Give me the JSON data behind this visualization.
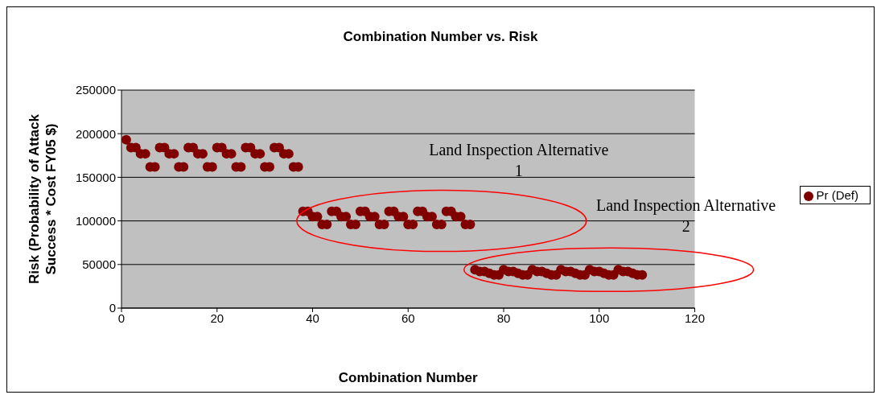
{
  "chart_data": {
    "type": "scatter",
    "title": "Combination Number vs. Risk",
    "xlabel": "Combination Number",
    "ylabel": "Risk (Probability of Attack Success * Cost FY05 $)",
    "x": [
      1,
      2,
      3,
      4,
      5,
      6,
      7,
      8,
      9,
      10,
      11,
      12,
      13,
      14,
      15,
      16,
      17,
      18,
      19,
      20,
      21,
      22,
      23,
      24,
      25,
      26,
      27,
      28,
      29,
      30,
      31,
      32,
      33,
      34,
      35,
      36,
      37,
      38,
      39,
      40,
      41,
      42,
      43,
      44,
      45,
      46,
      47,
      48,
      49,
      50,
      51,
      52,
      53,
      54,
      55,
      56,
      57,
      58,
      59,
      60,
      61,
      62,
      63,
      64,
      65,
      66,
      67,
      68,
      69,
      70,
      71,
      72,
      73,
      74,
      75,
      76,
      77,
      78,
      79,
      80,
      81,
      82,
      83,
      84,
      85,
      86,
      87,
      88,
      89,
      90,
      91,
      92,
      93,
      94,
      95,
      96,
      97,
      98,
      99,
      100,
      101,
      102,
      103,
      104,
      105,
      106,
      107,
      108,
      109
    ],
    "series": [
      {
        "name": "Pr (Def)",
        "color": "#800000",
        "values": [
          193000,
          184000,
          184000,
          177000,
          177000,
          162000,
          162000,
          184000,
          184000,
          177000,
          177000,
          162000,
          162000,
          184000,
          184000,
          177000,
          177000,
          162000,
          162000,
          184000,
          184000,
          177000,
          177000,
          162000,
          162000,
          184000,
          184000,
          177000,
          177000,
          162000,
          162000,
          184000,
          184000,
          177000,
          177000,
          162000,
          162000,
          111000,
          111000,
          105000,
          105000,
          96000,
          96000,
          111000,
          111000,
          105000,
          105000,
          96000,
          96000,
          111000,
          111000,
          105000,
          105000,
          96000,
          96000,
          111000,
          111000,
          105000,
          105000,
          96000,
          96000,
          111000,
          111000,
          105000,
          105000,
          96000,
          96000,
          111000,
          111000,
          105000,
          105000,
          96000,
          96000,
          44000,
          42000,
          42000,
          40000,
          38000,
          38000,
          44000,
          42000,
          42000,
          40000,
          38000,
          38000,
          44000,
          42000,
          42000,
          40000,
          38000,
          38000,
          44000,
          42000,
          42000,
          40000,
          38000,
          38000,
          44000,
          42000,
          42000,
          40000,
          38000,
          38000,
          44000,
          42000,
          42000,
          40000,
          38000,
          38000
        ]
      }
    ],
    "xlim": [
      0,
      120
    ],
    "xticks": [
      0,
      20,
      40,
      60,
      80,
      100,
      120
    ],
    "ylim": [
      0,
      250000
    ],
    "yticks": [
      0,
      50000,
      100000,
      150000,
      200000,
      250000
    ],
    "grid": "y",
    "legend": "right",
    "marker": "circle",
    "annotations": [
      {
        "text": "Land Inspection Alternative 1",
        "x": 67,
        "y": 100000
      },
      {
        "text": "Land Inspection Alternative 2",
        "x": 102,
        "y": 44000
      }
    ]
  }
}
